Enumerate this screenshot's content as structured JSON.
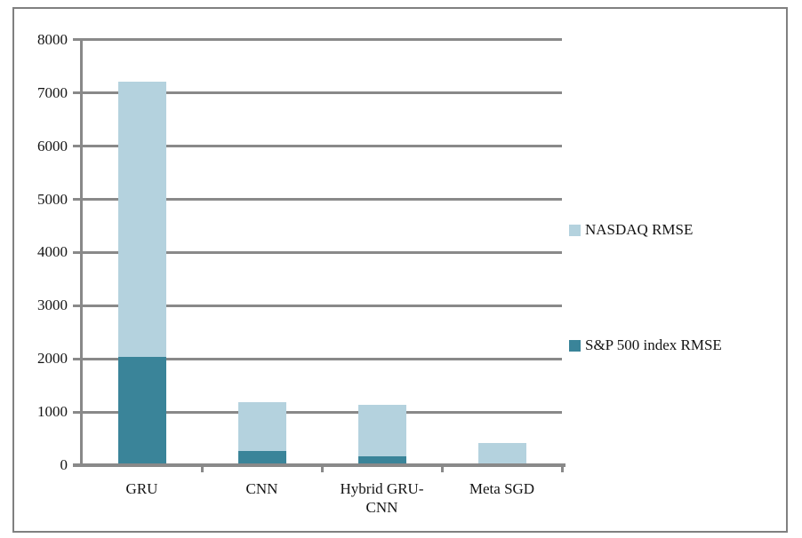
{
  "chart_data": {
    "type": "bar",
    "stacked": true,
    "title": "",
    "xlabel": "",
    "ylabel": "",
    "categories": [
      "GRU",
      "CNN",
      "Hybrid GRU-\nCNN",
      "Meta SGD"
    ],
    "series": [
      {
        "name": "S&P 500 index RMSE",
        "color": "#3a8499",
        "values": [
          2000,
          230,
          130,
          0
        ]
      },
      {
        "name": "NASDAQ RMSE",
        "color": "#b4d2de",
        "values": [
          5170,
          920,
          970,
          380
        ]
      }
    ],
    "stack_totals": [
      7170,
      1150,
      1100,
      380
    ],
    "legend": [
      {
        "label": "NASDAQ RMSE",
        "color": "#b4d2de"
      },
      {
        "label": "S&P 500 index RMSE",
        "color": "#3a8499"
      }
    ],
    "legend_position": "right",
    "ylim": [
      0,
      8000
    ],
    "ytick_step": 1000,
    "yticks": [
      "0",
      "1000",
      "2000",
      "3000",
      "4000",
      "5000",
      "6000",
      "7000",
      "8000"
    ],
    "grid": true
  },
  "colors": {
    "grid": "#898989",
    "axis": "#898989",
    "frame_border": "#808080",
    "text": "#141414",
    "background": "#ffffff"
  }
}
